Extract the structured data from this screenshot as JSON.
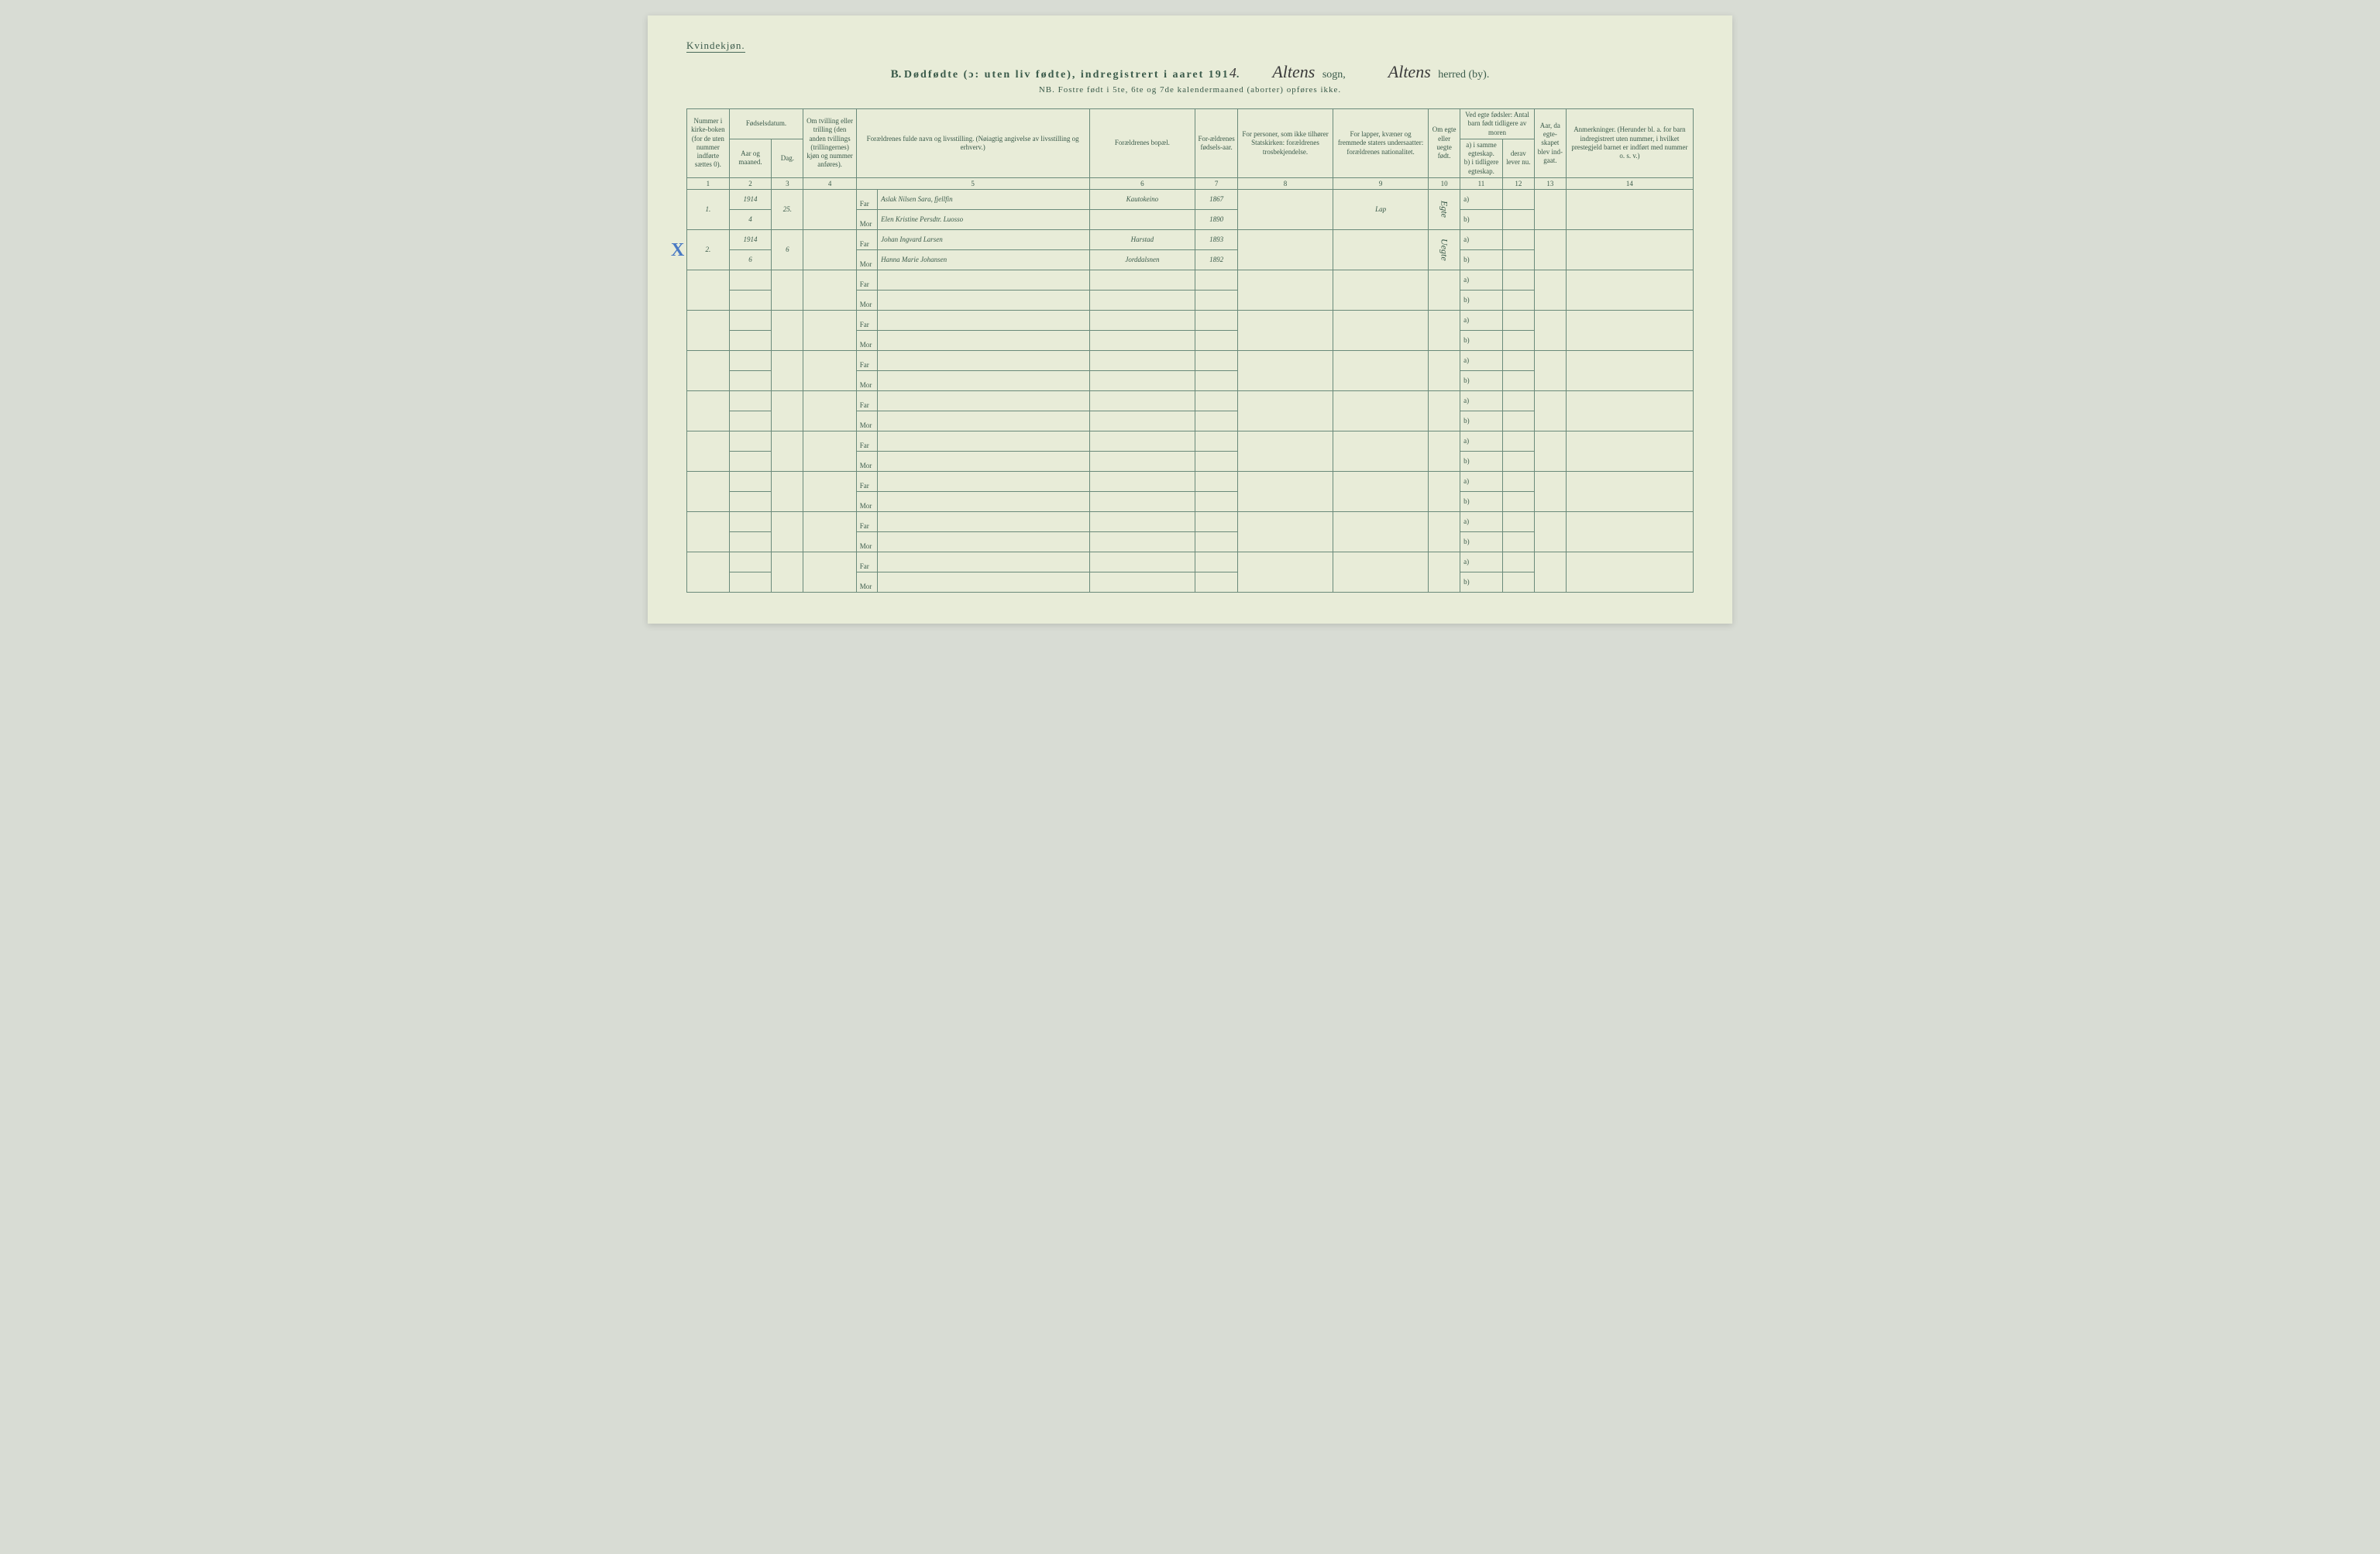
{
  "document": {
    "gender_label": "Kvindekjøn.",
    "section_letter": "B.",
    "title_main": "Dødfødte (ɔ: uten liv fødte), indregistrert i aaret 191",
    "year_suffix": "4",
    "sogn_handwritten": "Altens",
    "sogn_label": "sogn,",
    "herred_handwritten": "Altens",
    "herred_label": "herred (by).",
    "nb_line": "NB.  Fostre født i 5te, 6te og 7de kalendermaaned (aborter) opføres ikke.",
    "background_color": "#e8ecd8",
    "border_color": "#6a8a7a",
    "text_color": "#3a5a4a",
    "handwriting_color": "#3a3a3a",
    "blue_mark_color": "#4a7ac4"
  },
  "headers": {
    "col1": "Nummer i kirke-boken (for de uten nummer indførte sættes 0).",
    "col2_top": "Fødselsdatum.",
    "col2a": "Aar og maaned.",
    "col2b": "Dag.",
    "col4": "Om tvilling eller trilling (den anden tvillings (trillingernes) kjøn og nummer anføres).",
    "col5": "Forældrenes fulde navn og livsstilling. (Nøiagtig angivelse av livsstilling og erhverv.)",
    "col6": "Forældrenes bopæl.",
    "col7": "For-ældrenes fødsels-aar.",
    "col8": "For personer, som ikke tilhører Statskirken: forældrenes trosbekjendelse.",
    "col9": "For lapper, kvæner og fremmede staters undersaatter: forældrenes nationalitet.",
    "col10": "Om egte eller uegte født.",
    "col11_top": "Ved egte fødsler: Antal barn født tidligere av moren",
    "col11a": "a) i samme egteskap.",
    "col11b": "b) i tidligere egteskap.",
    "col12_top": "derav lever nu.",
    "col12a": "derav lever nu.",
    "col13": "Aar, da egte-skapet blev ind-gaat.",
    "col14": "Anmerkninger. (Herunder bl. a. for barn indregistrert uten nummer, i hvilket prestegjeld barnet er indført med nummer o. s. v.)"
  },
  "col_numbers": [
    "1",
    "2",
    "3",
    "4",
    "5",
    "6",
    "7",
    "8",
    "9",
    "10",
    "11",
    "12",
    "13",
    "14"
  ],
  "rows": [
    {
      "num": "1.",
      "aar": "1914",
      "maaned": "4",
      "dag": "25.",
      "far": "Aslak Nilsen Sara, fjellfin",
      "mor": "Elen Kristine Persdtr. Luosso",
      "bopael_far": "Kautokeino",
      "bopael_mor": "",
      "aar_far": "1867",
      "aar_mor": "1890",
      "nat": "Lap",
      "egte": "Egte",
      "mark": ""
    },
    {
      "num": "2.",
      "aar": "1914",
      "maaned": "6",
      "dag": "6",
      "far": "Johan Ingvard Larsen",
      "mor": "Hanna Marie Johansen",
      "bopael_far": "Harstad",
      "bopael_mor": "Jorddalsnen",
      "aar_far": "1893",
      "aar_mor": "1892",
      "nat": "",
      "egte": "Uegte",
      "mark": "X"
    }
  ],
  "empty_row_count": 8,
  "labels": {
    "far": "Far",
    "mor": "Mor",
    "a": "a)",
    "b": "b)"
  }
}
